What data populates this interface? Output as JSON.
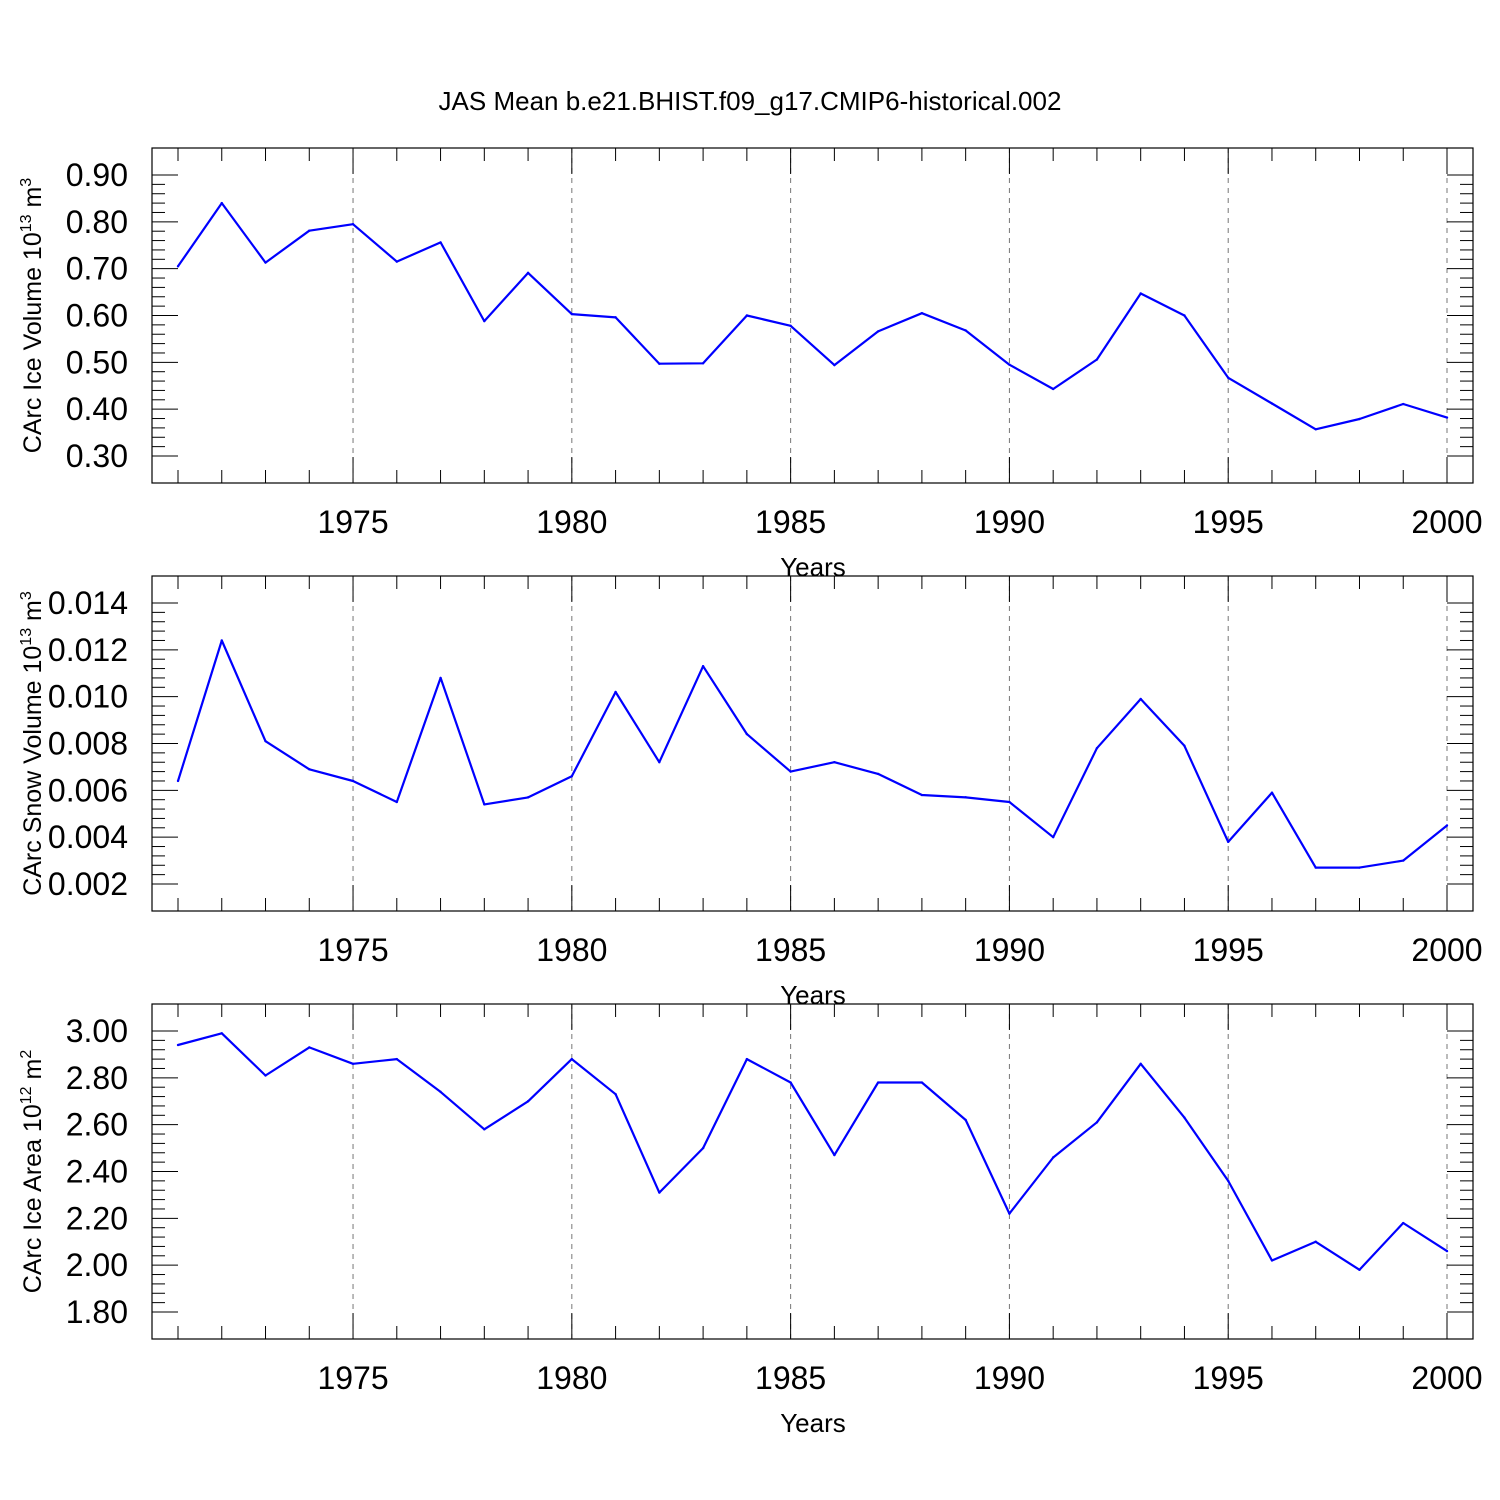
{
  "title": "JAS Mean b.e21.BHIST.f09_g17.CMIP6-historical.002",
  "chart_data": [
    {
      "type": "line",
      "ylabel": "CArc Ice Volume 10",
      "ylabel_exp": "13",
      "ylabel_unit": " m",
      "ylabel_unit_exp": "3",
      "xlabel": "Years",
      "xlim": [
        1971,
        2000
      ],
      "ylim": [
        0.3,
        0.9
      ],
      "yticks": [
        0.3,
        0.4,
        0.5,
        0.6,
        0.7,
        0.8,
        0.9
      ],
      "ytick_labels": [
        "0.30",
        "0.40",
        "0.50",
        "0.60",
        "0.70",
        "0.80",
        "0.90"
      ],
      "xticks": [
        1975,
        1980,
        1985,
        1990,
        1995,
        2000
      ],
      "xtick_labels": [
        "1975",
        "1980",
        "1985",
        "1990",
        "1995",
        "2000"
      ],
      "grid_x": true,
      "color": "#0000ff",
      "x": [
        1971,
        1972,
        1973,
        1974,
        1975,
        1976,
        1977,
        1978,
        1979,
        1980,
        1981,
        1982,
        1983,
        1984,
        1985,
        1986,
        1987,
        1988,
        1989,
        1990,
        1991,
        1992,
        1993,
        1994,
        1995,
        1996,
        1997,
        1998,
        1999,
        2000
      ],
      "values": [
        0.705,
        0.84,
        0.713,
        0.781,
        0.795,
        0.715,
        0.756,
        0.588,
        0.691,
        0.603,
        0.596,
        0.497,
        0.498,
        0.6,
        0.578,
        0.494,
        0.566,
        0.605,
        0.568,
        0.495,
        0.443,
        0.506,
        0.647,
        0.6,
        0.467,
        0.412,
        0.357,
        0.379,
        0.411,
        0.382
      ]
    },
    {
      "type": "line",
      "ylabel": "CArc Snow Volume 10",
      "ylabel_exp": "13",
      "ylabel_unit": " m",
      "ylabel_unit_exp": "3",
      "xlabel": "Years",
      "xlim": [
        1971,
        2000
      ],
      "ylim": [
        0.002,
        0.014
      ],
      "yticks": [
        0.002,
        0.004,
        0.006,
        0.008,
        0.01,
        0.012,
        0.014
      ],
      "ytick_labels": [
        "0.002",
        "0.004",
        "0.006",
        "0.008",
        "0.010",
        "0.012",
        "0.014"
      ],
      "xticks": [
        1975,
        1980,
        1985,
        1990,
        1995,
        2000
      ],
      "xtick_labels": [
        "1975",
        "1980",
        "1985",
        "1990",
        "1995",
        "2000"
      ],
      "grid_x": true,
      "color": "#0000ff",
      "x": [
        1971,
        1972,
        1973,
        1974,
        1975,
        1976,
        1977,
        1978,
        1979,
        1980,
        1981,
        1982,
        1983,
        1984,
        1985,
        1986,
        1987,
        1988,
        1989,
        1990,
        1991,
        1992,
        1993,
        1994,
        1995,
        1996,
        1997,
        1998,
        1999,
        2000
      ],
      "values": [
        0.0064,
        0.0124,
        0.0081,
        0.0069,
        0.0064,
        0.0055,
        0.0108,
        0.0054,
        0.0057,
        0.0066,
        0.0102,
        0.0072,
        0.0113,
        0.0084,
        0.0068,
        0.0072,
        0.0067,
        0.0058,
        0.0057,
        0.0055,
        0.004,
        0.0078,
        0.0099,
        0.0079,
        0.0038,
        0.0059,
        0.0027,
        0.0027,
        0.003,
        0.0045
      ]
    },
    {
      "type": "line",
      "ylabel": "CArc Ice Area 10",
      "ylabel_exp": "12",
      "ylabel_unit": " m",
      "ylabel_unit_exp": "2",
      "xlabel": "Years",
      "xlim": [
        1971,
        2000
      ],
      "ylim": [
        1.8,
        3.0
      ],
      "yticks": [
        1.8,
        2.0,
        2.2,
        2.4,
        2.6,
        2.8,
        3.0
      ],
      "ytick_labels": [
        "1.80",
        "2.00",
        "2.20",
        "2.40",
        "2.60",
        "2.80",
        "3.00"
      ],
      "xticks": [
        1975,
        1980,
        1985,
        1990,
        1995,
        2000
      ],
      "xtick_labels": [
        "1975",
        "1980",
        "1985",
        "1990",
        "1995",
        "2000"
      ],
      "grid_x": true,
      "color": "#0000ff",
      "x": [
        1971,
        1972,
        1973,
        1974,
        1975,
        1976,
        1977,
        1978,
        1979,
        1980,
        1981,
        1982,
        1983,
        1984,
        1985,
        1986,
        1987,
        1988,
        1989,
        1990,
        1991,
        1992,
        1993,
        1994,
        1995,
        1996,
        1997,
        1998,
        1999,
        2000
      ],
      "values": [
        2.94,
        2.99,
        2.81,
        2.93,
        2.86,
        2.88,
        2.74,
        2.58,
        2.7,
        2.88,
        2.73,
        2.31,
        2.5,
        2.88,
        2.78,
        2.47,
        2.78,
        2.78,
        2.62,
        2.22,
        2.46,
        2.61,
        2.86,
        2.63,
        2.36,
        2.02,
        2.1,
        1.98,
        2.18,
        2.06
      ]
    }
  ]
}
